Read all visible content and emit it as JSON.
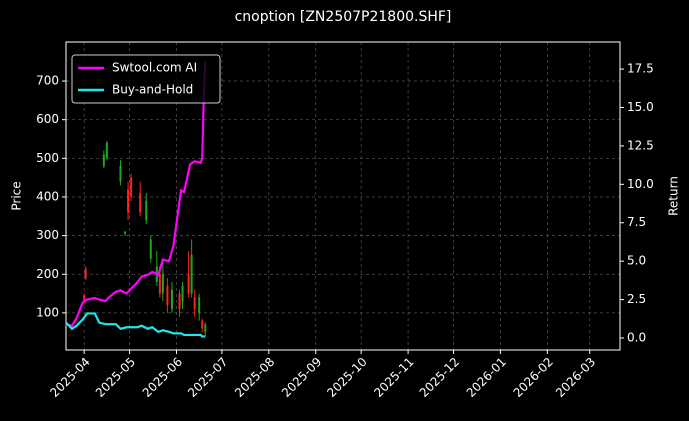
{
  "chart_data": {
    "type": "candlestick",
    "title": "cnoption [ZN2507P21800.SHF]",
    "y_label": "Price",
    "y2_label": "Return",
    "xlim": [
      "2025-03-20",
      "2026-03-21"
    ],
    "xticks": [
      {
        "value": "2025-04-01",
        "label": "2025-04"
      },
      {
        "value": "2025-05-01",
        "label": "2025-05"
      },
      {
        "value": "2025-06-01",
        "label": "2025-06"
      },
      {
        "value": "2025-07-01",
        "label": "2025-07"
      },
      {
        "value": "2025-08-01",
        "label": "2025-08"
      },
      {
        "value": "2025-09-01",
        "label": "2025-09"
      },
      {
        "value": "2025-10-01",
        "label": "2025-10"
      },
      {
        "value": "2025-11-01",
        "label": "2025-11"
      },
      {
        "value": "2025-12-01",
        "label": "2025-12"
      },
      {
        "value": "2026-01-01",
        "label": "2026-01"
      },
      {
        "value": "2026-02-01",
        "label": "2026-02"
      },
      {
        "value": "2026-03-01",
        "label": "2026-03"
      }
    ],
    "ylim": [
      4,
      801
    ],
    "yticks": [
      100,
      200,
      300,
      400,
      500,
      600,
      700
    ],
    "y2lim": [
      -0.78,
      19.26
    ],
    "y2ticks": [
      {
        "value": 0,
        "label": "0.0"
      },
      2.5,
      {
        "value": 5,
        "label": "5.0"
      },
      7.5,
      {
        "value": 10,
        "label": "10.0"
      },
      12.5,
      {
        "value": 15,
        "label": "15.0"
      },
      17.5
    ],
    "grid": true,
    "legend": "upper left",
    "up_color": "#ff2020",
    "down_color": "#1fa81f",
    "candles": {
      "x": [
        "2025-04-01",
        "2025-04-02",
        "2025-04-14",
        "2025-04-16",
        "2025-04-25",
        "2025-04-28",
        "2025-04-30",
        "2025-05-02",
        "2025-05-08",
        "2025-05-12",
        "2025-05-15",
        "2025-05-19",
        "2025-05-21",
        "2025-05-23",
        "2025-05-26",
        "2025-05-29",
        "2025-06-03",
        "2025-06-05",
        "2025-06-09",
        "2025-06-11",
        "2025-06-13",
        "2025-06-16",
        "2025-06-18",
        "2025-06-20"
      ],
      "open": [
        130,
        190,
        510,
        540,
        480,
        310,
        360,
        400,
        360,
        390,
        290,
        220,
        150,
        200,
        120,
        160,
        110,
        170,
        150,
        250,
        110,
        140,
        60,
        70
      ],
      "high": [
        150,
        220,
        520,
        545,
        495,
        312,
        440,
        460,
        440,
        410,
        300,
        260,
        220,
        230,
        190,
        180,
        160,
        180,
        260,
        290,
        160,
        150,
        85,
        75
      ],
      "low": [
        125,
        185,
        475,
        495,
        430,
        300,
        340,
        390,
        350,
        330,
        230,
        170,
        140,
        130,
        100,
        100,
        90,
        110,
        140,
        140,
        90,
        80,
        50,
        40
      ],
      "close": [
        145,
        215,
        480,
        500,
        440,
        305,
        420,
        450,
        410,
        340,
        240,
        180,
        200,
        150,
        170,
        110,
        150,
        130,
        200,
        150,
        140,
        100,
        80,
        50
      ]
    },
    "x": [
      "2025-03-20",
      "2025-03-24",
      "2025-03-27",
      "2025-03-31",
      "2025-04-03",
      "2025-04-08",
      "2025-04-11",
      "2025-04-15",
      "2025-04-18",
      "2025-04-22",
      "2025-04-25",
      "2025-04-29",
      "2025-05-06",
      "2025-05-09",
      "2025-05-13",
      "2025-05-16",
      "2025-05-20",
      "2025-05-23",
      "2025-05-27",
      "2025-05-30",
      "2025-06-04",
      "2025-06-06",
      "2025-06-10",
      "2025-06-13",
      "2025-06-17",
      "2025-06-18",
      "2025-06-19",
      "2025-06-20"
    ],
    "series": [
      {
        "name": "Swtool.com AI",
        "color": "#ff00ff",
        "axis": "y2",
        "values": [
          0.9,
          0.8,
          1.3,
          2.3,
          2.5,
          2.6,
          2.5,
          2.4,
          2.7,
          3.0,
          3.1,
          2.9,
          3.6,
          4.0,
          4.1,
          4.3,
          4.1,
          5.1,
          5.0,
          6.0,
          9.6,
          9.5,
          11.3,
          11.5,
          11.4,
          11.7,
          15.5,
          18.0
        ]
      },
      {
        "name": "Buy-and-Hold",
        "color": "#22e6e6",
        "axis": "y2",
        "values": [
          1.0,
          0.6,
          0.8,
          1.2,
          1.6,
          1.6,
          1.0,
          0.9,
          0.9,
          0.9,
          0.6,
          0.7,
          0.7,
          0.8,
          0.6,
          0.7,
          0.4,
          0.5,
          0.4,
          0.3,
          0.3,
          0.2,
          0.2,
          0.2,
          0.2,
          0.1,
          0.1,
          0.1
        ]
      }
    ]
  }
}
